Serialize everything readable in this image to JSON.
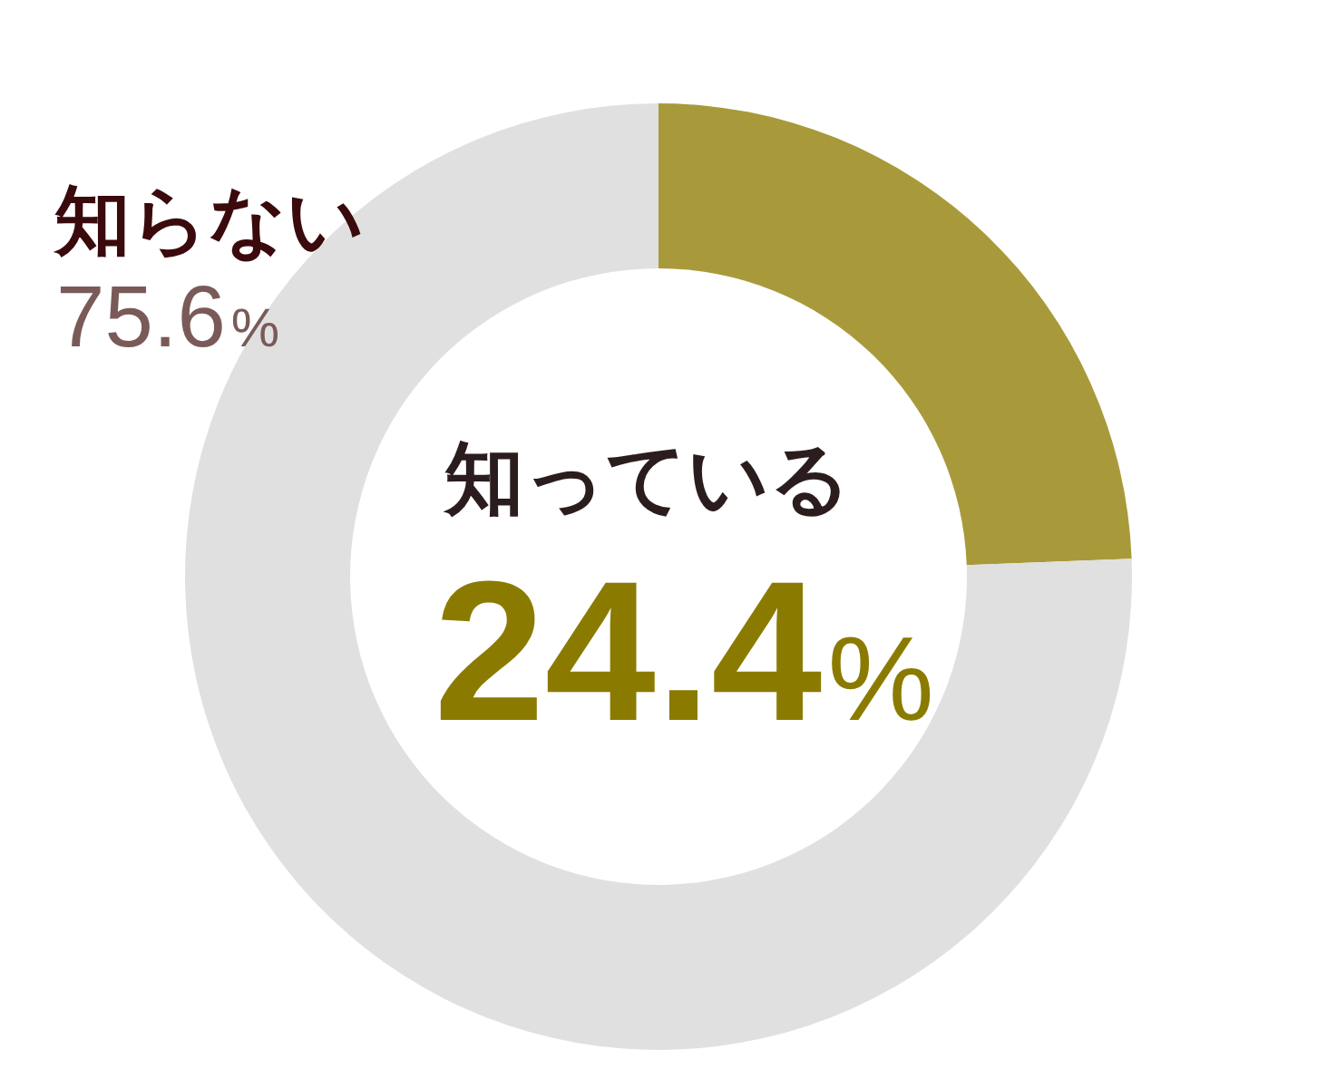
{
  "chart_data": {
    "type": "donut",
    "categories": [
      "知っている",
      "知らない"
    ],
    "values": [
      24.4,
      75.6
    ],
    "colors": [
      "#a89a3a",
      "#e0e0e0"
    ],
    "value_labels": [
      "24.4%",
      "75.6%"
    ]
  }
}
